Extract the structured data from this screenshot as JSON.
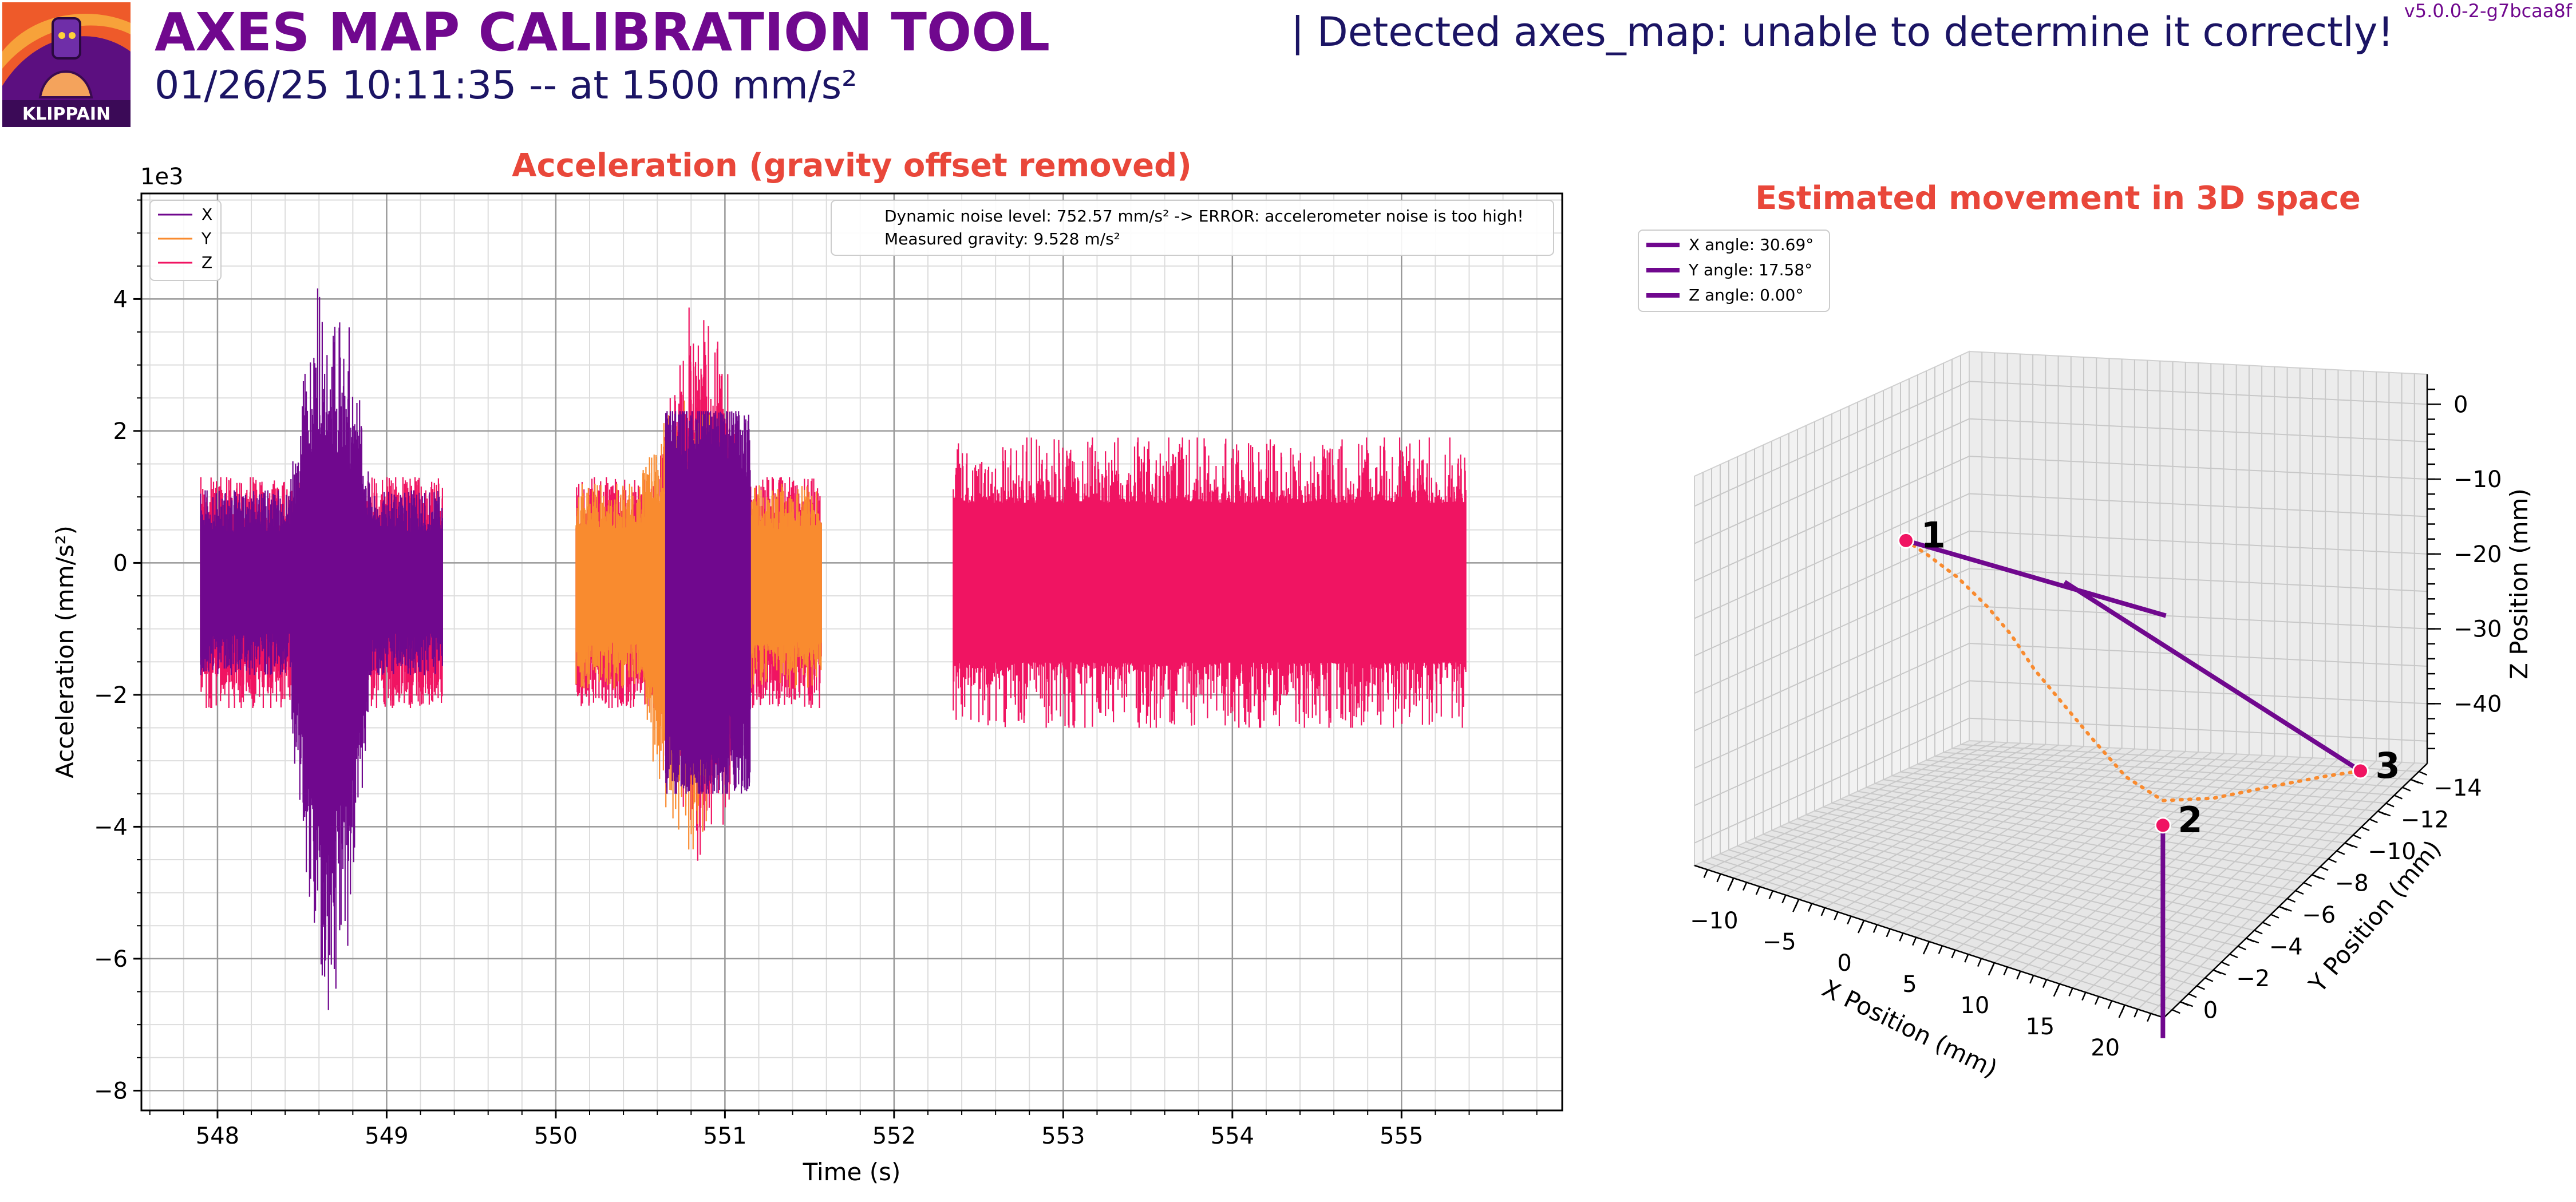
{
  "header": {
    "logo_label": "KLIPPAIN",
    "title": "AXES MAP CALIBRATION TOOL",
    "subtitle": "01/26/25 10:11:35 -- at 1500 mm/s²",
    "detection": "| Detected axes_map: unable to determine it correctly!",
    "version": "v5.0.0-2-g7bcaa8f"
  },
  "colors": {
    "purple": "#70088e",
    "orange": "#f98b2f",
    "pink": "#f01462",
    "title_red": "#e9473a",
    "title_purple": "#70088e",
    "subtitle_navy": "#1b1464"
  },
  "chart_data": [
    {
      "type": "line",
      "title": "Acceleration (gravity offset removed)",
      "xlabel": "Time (s)",
      "ylabel": "Acceleration (mm/s²)",
      "y_multiplier": "1e3",
      "xlim": [
        547.55,
        555.95
      ],
      "ylim": [
        -8.3,
        5.6
      ],
      "x_ticks": [
        548,
        549,
        550,
        551,
        552,
        553,
        554,
        555
      ],
      "y_ticks": [
        -8,
        -6,
        -4,
        -2,
        0,
        2,
        4
      ],
      "grid": true,
      "minor_grid": true,
      "legend_placement": "top-left",
      "series": [
        {
          "name": "X",
          "color": "#70088e",
          "segments": [
            {
              "x_start": 547.9,
              "x_end": 549.33,
              "base_min": -1.7,
              "base_max": 1.1,
              "bursts": [
                {
                  "x_start": 548.43,
                  "x_end": 548.9,
                  "min": -7.7,
                  "max": 5.0
                }
              ]
            },
            {
              "x_start": 550.65,
              "x_end": 551.15,
              "base_min": -3.5,
              "base_max": 2.3,
              "bursts": []
            }
          ]
        },
        {
          "name": "Y",
          "color": "#f98b2f",
          "segments": [
            {
              "x_start": 550.12,
              "x_end": 551.57,
              "base_min": -1.9,
              "base_max": 1.2,
              "bursts": [
                {
                  "x_start": 550.5,
                  "x_end": 551.05,
                  "min": -4.8,
                  "max": 2.8
                }
              ]
            }
          ]
        },
        {
          "name": "Z",
          "color": "#f01462",
          "segments": [
            {
              "x_start": 547.9,
              "x_end": 549.33,
              "base_min": -2.2,
              "base_max": 1.3,
              "bursts": []
            },
            {
              "x_start": 550.12,
              "x_end": 551.57,
              "base_min": -2.2,
              "base_max": 1.3,
              "bursts": [
                {
                  "x_start": 550.6,
                  "x_end": 551.1,
                  "min": -5.1,
                  "max": 4.6
                }
              ]
            },
            {
              "x_start": 552.35,
              "x_end": 555.38,
              "base_min": -2.5,
              "base_max": 1.9,
              "bursts": []
            }
          ]
        }
      ],
      "annotations": [
        "Dynamic noise level: 752.57 mm/s² -> ERROR: accelerometer noise is too high!",
        "Measured gravity: 9.528 m/s²"
      ]
    },
    {
      "type": "line3d",
      "title": "Estimated movement in 3D space",
      "xlabel": "X Position (mm)",
      "ylabel": "Y Position (mm)",
      "zlabel": "Z Position (mm)",
      "xlim": [
        -13,
        23
      ],
      "ylim": [
        -15,
        1
      ],
      "zlim": [
        -48,
        4
      ],
      "x_ticks": [
        -10,
        -5,
        0,
        5,
        10,
        15,
        20
      ],
      "y_ticks": [
        0,
        -2,
        -4,
        -6,
        -8,
        -10,
        -12,
        -14
      ],
      "z_ticks": [
        0,
        -10,
        -20,
        -30,
        -40
      ],
      "legend_placement": "top-left",
      "series": [
        {
          "name": "X angle: 30.69°",
          "color": "#70088e",
          "points": [
            [
              0.5,
              -1.1,
              0.0
            ],
            [
              20.5,
              -1.1,
              0.0
            ]
          ]
        },
        {
          "name": "Y angle: 17.58°",
          "color": "#70088e",
          "points": [
            [
              -3.5,
              -13.5,
              -24.0
            ],
            [
              21.0,
              -12.5,
              -44.0
            ]
          ]
        },
        {
          "name": "Z angle: 0.00°",
          "color": "#70088e",
          "points": [
            [
              10.5,
              -8.7,
              -46.3
            ],
            [
              10.5,
              -8.7,
              -46.3
            ]
          ]
        }
      ],
      "trajectory": {
        "color": "#f98b2f",
        "points": [
          [
            0.5,
            -1.1,
            0
          ],
          [
            1,
            -2,
            -3
          ],
          [
            2,
            -3,
            -7
          ],
          [
            3,
            -4,
            -12
          ],
          [
            3.5,
            -5,
            -17
          ],
          [
            4,
            -6,
            -23
          ],
          [
            5,
            -7,
            -29
          ],
          [
            6,
            -8,
            -35
          ],
          [
            8,
            -8.4,
            -40
          ],
          [
            10.5,
            -8.7,
            -43
          ],
          [
            13,
            -9.8,
            -44
          ],
          [
            16,
            -11,
            -44
          ],
          [
            19,
            -12,
            -44
          ],
          [
            21,
            -12.5,
            -44
          ]
        ]
      },
      "markers": [
        {
          "label": "1",
          "point": [
            0.5,
            -1.1,
            0.0
          ]
        },
        {
          "label": "2",
          "point": [
            10.5,
            -8.7,
            -46.3
          ]
        },
        {
          "label": "3",
          "point": [
            21.0,
            -12.5,
            -44.0
          ]
        }
      ]
    }
  ]
}
